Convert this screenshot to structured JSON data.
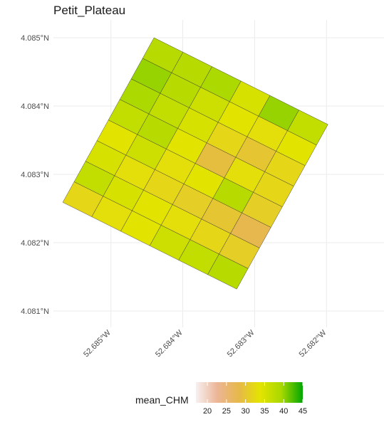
{
  "chart_data": {
    "type": "heatmap",
    "title": "Petit_Plateau",
    "fill_variable": "mean_CHM",
    "x_ticks": [
      {
        "value": -52.685,
        "label": "52.685°W"
      },
      {
        "value": -52.684,
        "label": "52.684°W"
      },
      {
        "value": -52.683,
        "label": "52.683°W"
      },
      {
        "value": -52.682,
        "label": "52.682°W"
      }
    ],
    "y_ticks": [
      {
        "value": 4.085,
        "label": "4.085°N"
      },
      {
        "value": 4.084,
        "label": "4.084°N"
      },
      {
        "value": 4.083,
        "label": "4.083°N"
      },
      {
        "value": 4.082,
        "label": "4.082°N"
      },
      {
        "value": 4.081,
        "label": "4.081°N"
      }
    ],
    "xlim": [
      -52.6858,
      -52.6812
    ],
    "ylim": [
      4.08076,
      4.08526
    ],
    "grid": true,
    "legend": {
      "position": "bottom",
      "title": "mean_CHM",
      "min": 17,
      "max": 45,
      "ticks": [
        20,
        25,
        30,
        35,
        40,
        45
      ],
      "colors": [
        "#f7f0f0",
        "#ecb596",
        "#e6b84a",
        "#e4e400",
        "#a8d800",
        "#00a600"
      ]
    },
    "grid_corners": {
      "top_left": {
        "lon": -52.68567,
        "lat": 4.08259
      },
      "top_right": {
        "lon": -52.6844,
        "lat": 4.085
      },
      "bottom_left": {
        "lon": -52.68325,
        "lat": 4.08132
      },
      "bottom_right": {
        "lon": -52.68198,
        "lat": 4.08373
      }
    },
    "cells": [
      [
        32,
        33,
        34,
        36,
        37,
        38
      ],
      [
        37,
        35,
        34,
        33,
        32,
        31
      ],
      [
        35,
        33,
        32,
        31,
        30,
        28
      ],
      [
        34,
        36,
        33,
        34,
        38,
        31
      ],
      [
        37,
        38,
        34,
        29,
        33,
        32
      ],
      [
        39,
        37,
        35,
        32,
        30,
        32
      ],
      [
        40,
        38,
        36,
        34,
        33,
        34
      ],
      [
        38,
        38,
        39,
        35,
        40,
        37
      ]
    ]
  }
}
